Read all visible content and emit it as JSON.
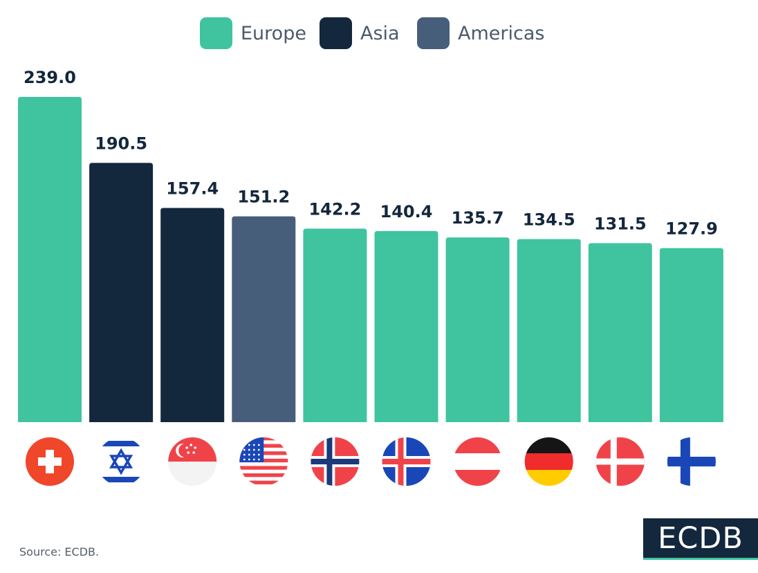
{
  "colors": {
    "Europe": "#3fc49f",
    "Asia": "#13273d",
    "Americas": "#475e7b",
    "value_label": "#13273d",
    "legend_text": "#4a5a6c"
  },
  "legend": [
    {
      "name": "Europe",
      "color_key": "Europe"
    },
    {
      "name": "Asia",
      "color_key": "Asia"
    },
    {
      "name": "Americas",
      "color_key": "Americas"
    }
  ],
  "chart_data": {
    "type": "bar",
    "title": "",
    "xlabel": "",
    "ylabel": "",
    "ylim": [
      0,
      239.0
    ],
    "grid": false,
    "legend_placement": "top-center",
    "categories": [
      "flag-switzerland",
      "flag-israel",
      "flag-singapore",
      "flag-usa",
      "flag-norway",
      "flag-iceland",
      "flag-austria",
      "flag-germany",
      "flag-denmark",
      "flag-finland"
    ],
    "values": [
      239.0,
      190.5,
      157.4,
      151.2,
      142.2,
      140.4,
      135.7,
      134.5,
      131.5,
      127.9
    ],
    "value_labels": [
      "239.0",
      "190.5",
      "157.4",
      "151.2",
      "142.2",
      "140.4",
      "135.7",
      "134.5",
      "131.5",
      "127.9"
    ],
    "regions": [
      "Europe",
      "Asia",
      "Asia",
      "Americas",
      "Europe",
      "Europe",
      "Europe",
      "Europe",
      "Europe",
      "Europe"
    ]
  },
  "footer": {
    "source": "Source: ECDB.",
    "logo": "ECDB"
  }
}
